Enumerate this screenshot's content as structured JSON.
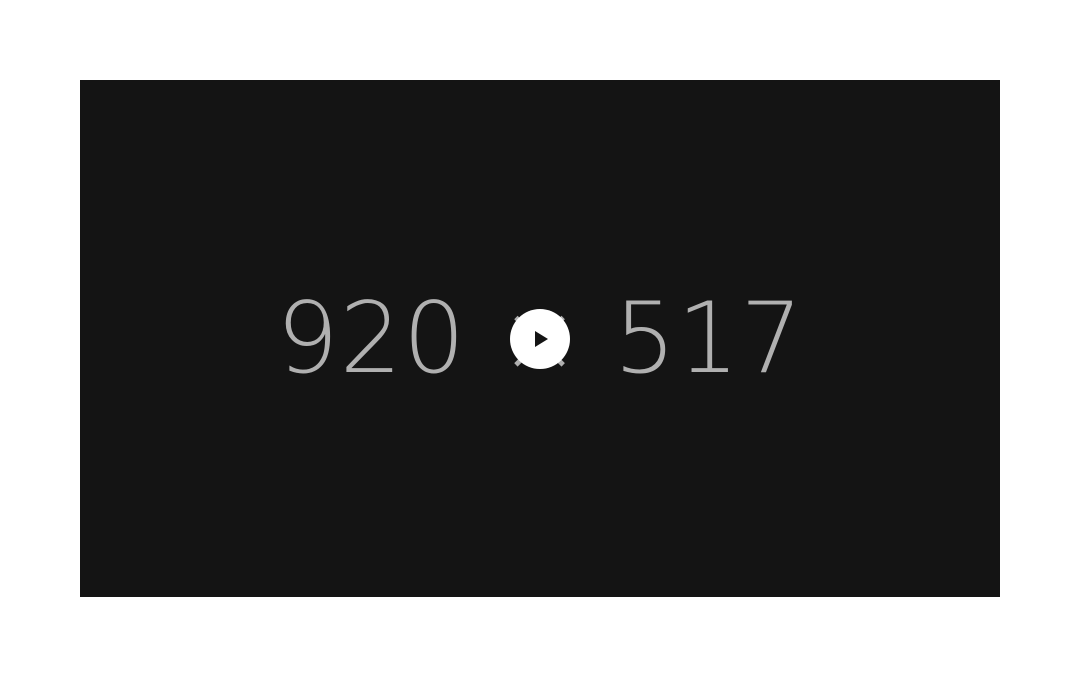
{
  "video": {
    "placeholder_text": "920 × 517"
  },
  "controls": {
    "play_icon": "play-icon"
  },
  "colors": {
    "page_background": "#ffffff",
    "player_background": "#141414",
    "placeholder_text": "#b0b0b0",
    "play_button": "#ffffff",
    "play_glyph": "#141414"
  }
}
